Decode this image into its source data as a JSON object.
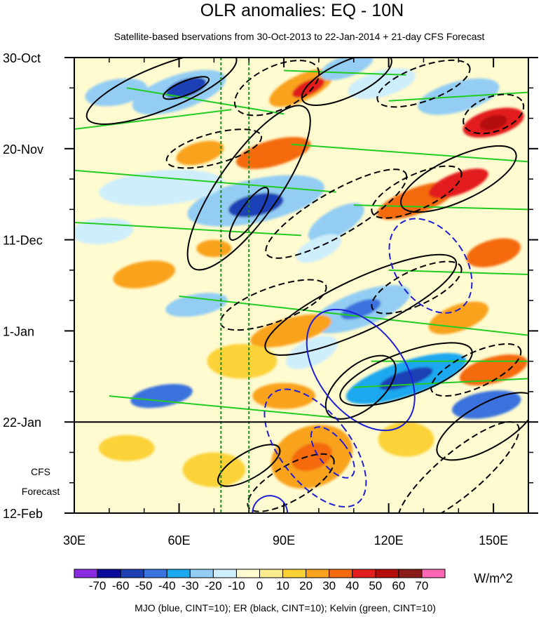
{
  "chart_data": {
    "type": "heatmap",
    "title": "OLR anomalies: EQ - 10N",
    "subtitle": "Satellite-based bservations from 30-Oct-2013 to 22-Jan-2014 + 21-day CFS Forecast",
    "x_axis": {
      "range": [
        30,
        160
      ],
      "ticks": [
        30,
        60,
        90,
        120,
        150
      ],
      "tick_labels": [
        "30E",
        "60E",
        "90E",
        "120E",
        "150E"
      ],
      "minor_ticks": [
        40,
        50,
        70,
        80,
        100,
        110,
        130,
        140
      ]
    },
    "y_axis": {
      "range_days": [
        0,
        105
      ],
      "ticks_days": [
        0,
        21,
        42,
        63,
        84,
        105
      ],
      "tick_labels": [
        "30-Oct",
        "20-Nov",
        "11-Dec",
        "1-Jan",
        "22-Jan",
        "12-Feb"
      ],
      "minor_step_days": 7
    },
    "observation_end_day": 84,
    "forecast_label": [
      "CFS",
      "Forecast"
    ],
    "reference_lines_lon": [
      72,
      80
    ],
    "colorbar": {
      "units": "W/m^2",
      "labels": [
        "-70",
        "-60",
        "-50",
        "-40",
        "-30",
        "-20",
        "-10",
        "0",
        "10",
        "20",
        "30",
        "40",
        "50",
        "60",
        "70"
      ],
      "colors": [
        "#8a2be2",
        "#0a0a9a",
        "#1f3fb5",
        "#3a72dd",
        "#1aa8ee",
        "#93cdf3",
        "#cfeefb",
        "#fffbd0",
        "#fbeb8f",
        "#fbd238",
        "#f9a21e",
        "#f46a0c",
        "#e21e1e",
        "#b40c0c",
        "#8b1a1a",
        "#ff66b3"
      ]
    },
    "footer": "MJO (blue, CINT=10); ER (black, CINT=10); Kelvin (green, CINT=10)",
    "contour_series": [
      {
        "name": "MJO",
        "color": "#1f1fd6",
        "cint": 10
      },
      {
        "name": "ER",
        "color": "#000000",
        "cint": 10
      },
      {
        "name": "Kelvin",
        "color": "#22cc22",
        "cint": 10
      }
    ],
    "anomaly_blobs": [
      {
        "lon": 60,
        "day": 8,
        "rlon": 14,
        "rday": 4,
        "rot": -18,
        "v": -30
      },
      {
        "lon": 62,
        "day": 7,
        "rlon": 6,
        "rday": 2,
        "rot": -18,
        "v": -60
      },
      {
        "lon": 42,
        "day": 8,
        "rlon": 9,
        "rday": 3,
        "rot": -10,
        "v": -30
      },
      {
        "lon": 95,
        "day": 7,
        "rlon": 10,
        "rday": 3,
        "rot": -25,
        "v": 20
      },
      {
        "lon": 97,
        "day": 7,
        "rlon": 5,
        "rday": 1.6,
        "rot": -25,
        "v": 40
      },
      {
        "lon": 108,
        "day": 2,
        "rlon": 8,
        "rday": 2.5,
        "rot": -20,
        "v": -30
      },
      {
        "lon": 150,
        "day": 15,
        "rlon": 9,
        "rday": 3,
        "rot": -15,
        "v": 40
      },
      {
        "lon": 150,
        "day": 15,
        "rlon": 4,
        "rday": 1.6,
        "rot": -15,
        "v": 50
      },
      {
        "lon": 140,
        "day": 9,
        "rlon": 12,
        "rday": 3.5,
        "rot": -15,
        "v": -30
      },
      {
        "lon": 118,
        "day": 6,
        "rlon": 10,
        "rday": 3,
        "rot": -15,
        "v": -20
      },
      {
        "lon": 87,
        "day": 22,
        "rlon": 11,
        "rday": 3,
        "rot": -15,
        "v": 30
      },
      {
        "lon": 66,
        "day": 22,
        "rlon": 7,
        "rday": 2.5,
        "rot": -15,
        "v": 20
      },
      {
        "lon": 82,
        "day": 33,
        "rlon": 20,
        "rday": 5,
        "rot": -12,
        "v": -30
      },
      {
        "lon": 82,
        "day": 34,
        "rlon": 8,
        "rday": 2.5,
        "rot": -12,
        "v": -60
      },
      {
        "lon": 55,
        "day": 30,
        "rlon": 18,
        "rday": 4,
        "rot": -5,
        "v": -20
      },
      {
        "lon": 38,
        "day": 40,
        "rlon": 9,
        "rday": 3,
        "rot": -5,
        "v": -20
      },
      {
        "lon": 105,
        "day": 38,
        "rlon": 9,
        "rday": 3,
        "rot": -30,
        "v": -30
      },
      {
        "lon": 100,
        "day": 44,
        "rlon": 7,
        "rday": 2.5,
        "rot": -25,
        "v": -20
      },
      {
        "lon": 128,
        "day": 33,
        "rlon": 12,
        "rday": 3,
        "rot": -20,
        "v": 30
      },
      {
        "lon": 140,
        "day": 29,
        "rlon": 9,
        "rday": 2.5,
        "rot": -20,
        "v": 40
      },
      {
        "lon": 150,
        "day": 45,
        "rlon": 8,
        "rday": 3,
        "rot": -15,
        "v": 30
      },
      {
        "lon": 70,
        "day": 44,
        "rlon": 5,
        "rday": 2,
        "rot": 0,
        "v": 20
      },
      {
        "lon": 50,
        "day": 50,
        "rlon": 9,
        "rday": 3,
        "rot": -10,
        "v": 20
      },
      {
        "lon": 65,
        "day": 57,
        "rlon": 9,
        "rday": 2.5,
        "rot": -10,
        "v": -30
      },
      {
        "lon": 112,
        "day": 58,
        "rlon": 15,
        "rday": 4,
        "rot": -20,
        "v": -30
      },
      {
        "lon": 112,
        "day": 58,
        "rlon": 6,
        "rday": 1.8,
        "rot": -20,
        "v": -50
      },
      {
        "lon": 140,
        "day": 60,
        "rlon": 9,
        "rday": 3,
        "rot": -20,
        "v": 20
      },
      {
        "lon": 92,
        "day": 63,
        "rlon": 12,
        "rday": 3,
        "rot": -15,
        "v": 20
      },
      {
        "lon": 98,
        "day": 68,
        "rlon": 8,
        "rday": 3,
        "rot": -25,
        "v": -20
      },
      {
        "lon": 125,
        "day": 74,
        "rlon": 18,
        "rday": 4,
        "rot": -18,
        "v": -40
      },
      {
        "lon": 125,
        "day": 74,
        "rlon": 8,
        "rday": 1.8,
        "rot": -18,
        "v": -60
      },
      {
        "lon": 150,
        "day": 72,
        "rlon": 10,
        "rday": 3,
        "rot": -15,
        "v": 30
      },
      {
        "lon": 148,
        "day": 80,
        "rlon": 10,
        "rday": 3,
        "rot": -10,
        "v": -50
      },
      {
        "lon": 55,
        "day": 78,
        "rlon": 9,
        "rday": 2.5,
        "rot": -10,
        "v": -50
      },
      {
        "lon": 78,
        "day": 70,
        "rlon": 10,
        "rday": 4,
        "rot": 0,
        "v": 10
      },
      {
        "lon": 90,
        "day": 78,
        "rlon": 9,
        "rday": 3,
        "rot": 0,
        "v": 20
      },
      {
        "lon": 98,
        "day": 92,
        "rlon": 12,
        "rday": 7,
        "rot": -20,
        "v": 20
      },
      {
        "lon": 98,
        "day": 92,
        "rlon": 6,
        "rday": 3,
        "rot": -20,
        "v": 30
      },
      {
        "lon": 70,
        "day": 95,
        "rlon": 9,
        "rday": 4,
        "rot": 0,
        "v": 10
      },
      {
        "lon": 45,
        "day": 90,
        "rlon": 8,
        "rday": 3,
        "rot": 0,
        "v": 10
      },
      {
        "lon": 148,
        "day": 100,
        "rlon": 12,
        "rday": 4,
        "rot": 0,
        "v": -10
      },
      {
        "lon": 125,
        "day": 88,
        "rlon": 8,
        "rday": 4,
        "rot": 0,
        "v": 10
      }
    ],
    "mjo_contours": [
      {
        "lon": 132,
        "day": 48,
        "rlon": 10,
        "rday": 12,
        "rot": -35,
        "dash": true
      },
      {
        "lon": 112,
        "day": 72,
        "rlon": 12,
        "rday": 16,
        "rot": -38,
        "dash": false
      },
      {
        "lon": 99,
        "day": 90,
        "rlon": 10,
        "rday": 16,
        "rot": -38,
        "dash": true
      },
      {
        "lon": 104,
        "day": 91,
        "rlon": 4,
        "rday": 7,
        "rot": -38,
        "dash": true
      },
      {
        "lon": 86,
        "day": 105,
        "rlon": 5,
        "rday": 4,
        "rot": -30,
        "dash": false
      }
    ],
    "er_contours": [
      {
        "lon": 55,
        "day": 7,
        "rlon": 23,
        "rday": 5,
        "rot": -22,
        "dash": false
      },
      {
        "lon": 62,
        "day": 7,
        "rlon": 7,
        "rday": 1.6,
        "rot": -22,
        "dash": false
      },
      {
        "lon": 88,
        "day": 7,
        "rlon": 13,
        "rday": 5,
        "rot": -25,
        "dash": true
      },
      {
        "lon": 108,
        "day": 5,
        "rlon": 14,
        "rday": 4,
        "rot": -25,
        "dash": false
      },
      {
        "lon": 130,
        "day": 6,
        "rlon": 14,
        "rday": 4,
        "rot": -20,
        "dash": true
      },
      {
        "lon": 150,
        "day": 13,
        "rlon": 9,
        "rday": 4,
        "rot": -20,
        "dash": true
      },
      {
        "lon": 70,
        "day": 21,
        "rlon": 14,
        "rday": 3.5,
        "rot": -15,
        "dash": true
      },
      {
        "lon": 80,
        "day": 30,
        "rlon": 28,
        "rday": 7,
        "rot": -55,
        "dash": false
      },
      {
        "lon": 80,
        "day": 36,
        "rlon": 9,
        "rday": 2,
        "rot": -55,
        "dash": false
      },
      {
        "lon": 105,
        "day": 36,
        "rlon": 23,
        "rday": 5,
        "rot": -30,
        "dash": true
      },
      {
        "lon": 128,
        "day": 31,
        "rlon": 14,
        "rday": 4,
        "rot": -25,
        "dash": true
      },
      {
        "lon": 140,
        "day": 28,
        "rlon": 18,
        "rday": 5,
        "rot": -25,
        "dash": false
      },
      {
        "lon": 112,
        "day": 57,
        "rlon": 30,
        "rday": 6,
        "rot": -25,
        "dash": false
      },
      {
        "lon": 87,
        "day": 57,
        "rlon": 16,
        "rday": 4,
        "rot": -20,
        "dash": true
      },
      {
        "lon": 128,
        "day": 53,
        "rlon": 14,
        "rday": 4,
        "rot": -25,
        "dash": true
      },
      {
        "lon": 112,
        "day": 76,
        "rlon": 12,
        "rday": 5,
        "rot": -40,
        "dash": false
      },
      {
        "lon": 125,
        "day": 73,
        "rlon": 20,
        "rday": 5,
        "rot": -20,
        "dash": false
      },
      {
        "lon": 145,
        "day": 72,
        "rlon": 14,
        "rday": 4,
        "rot": -25,
        "dash": true
      },
      {
        "lon": 148,
        "day": 85,
        "rlon": 16,
        "rday": 5,
        "rot": -30,
        "dash": false
      },
      {
        "lon": 80,
        "day": 94,
        "rlon": 10,
        "rday": 3,
        "rot": -30,
        "dash": false
      },
      {
        "lon": 92,
        "day": 98,
        "rlon": 14,
        "rday": 4,
        "rot": -30,
        "dash": true
      },
      {
        "lon": 140,
        "day": 96,
        "rlon": 22,
        "rday": 5,
        "rot": -40,
        "dash": true
      }
    ],
    "kelvin_lines": [
      [
        [
          30,
          16.5
        ],
        [
          75,
          12
        ]
      ],
      [
        [
          45,
          7
        ],
        [
          90,
          13
        ]
      ],
      [
        [
          30,
          26
        ],
        [
          105,
          31
        ]
      ],
      [
        [
          30,
          38
        ],
        [
          95,
          41
        ]
      ],
      [
        [
          60,
          55
        ],
        [
          160,
          64
        ]
      ],
      [
        [
          40,
          78
        ],
        [
          105,
          83
        ]
      ],
      [
        [
          92,
          20
        ],
        [
          160,
          24
        ]
      ],
      [
        [
          110,
          34
        ],
        [
          160,
          35
        ]
      ],
      [
        [
          120,
          10
        ],
        [
          160,
          8
        ]
      ],
      [
        [
          115,
          70
        ],
        [
          160,
          70
        ]
      ],
      [
        [
          110,
          76
        ],
        [
          160,
          74
        ]
      ],
      [
        [
          120,
          49
        ],
        [
          160,
          50
        ]
      ],
      [
        [
          90,
          3
        ],
        [
          125,
          4
        ]
      ]
    ]
  }
}
